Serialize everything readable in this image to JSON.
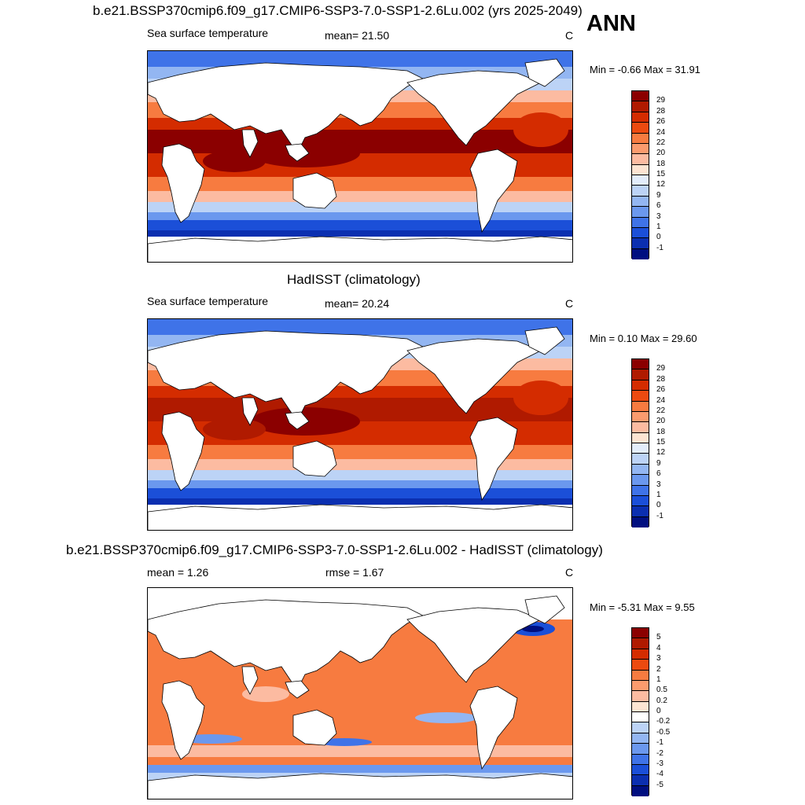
{
  "season": "ANN",
  "panels": [
    {
      "title": "b.e21.BSSP370cmip6.f09_g17.CMIP6-SSP3-7.0-SSP1-2.6Lu.002 (yrs 2025-2049)",
      "left_label": "Sea surface temperature",
      "center_label": "mean=  21.50",
      "units": "C",
      "minmax": "Min =  -0.66 Max =  31.91",
      "colorbar": {
        "labels": [
          "29",
          "28",
          "26",
          "24",
          "22",
          "20",
          "18",
          "15",
          "12",
          "9",
          "6",
          "3",
          "1",
          "0",
          "-1"
        ],
        "colors": [
          "#8b0000",
          "#b01a00",
          "#d42c00",
          "#ec4a10",
          "#f77b40",
          "#fb9b6e",
          "#fcbba1",
          "#fde4d2",
          "#e3edfb",
          "#bcd3f6",
          "#93b6f2",
          "#6b98ee",
          "#3f73e8",
          "#1b4fd8",
          "#0b2fb0",
          "#000f80"
        ]
      },
      "map_variant": "abs"
    },
    {
      "title": "HadISST (climatology)",
      "left_label": "Sea surface temperature",
      "center_label": "mean=  20.24",
      "units": "C",
      "minmax": "Min =   0.10 Max =  29.60",
      "colorbar": {
        "labels": [
          "29",
          "28",
          "26",
          "24",
          "22",
          "20",
          "18",
          "15",
          "12",
          "9",
          "6",
          "3",
          "1",
          "0",
          "-1"
        ],
        "colors": [
          "#8b0000",
          "#b01a00",
          "#d42c00",
          "#ec4a10",
          "#f77b40",
          "#fb9b6e",
          "#fcbba1",
          "#fde4d2",
          "#e3edfb",
          "#bcd3f6",
          "#93b6f2",
          "#6b98ee",
          "#3f73e8",
          "#1b4fd8",
          "#0b2fb0",
          "#000f80"
        ]
      },
      "map_variant": "obs"
    },
    {
      "title": "b.e21.BSSP370cmip6.f09_g17.CMIP6-SSP3-7.0-SSP1-2.6Lu.002 - HadISST (climatology)",
      "left_label": "mean =   1.26",
      "center_label": "rmse =   1.67",
      "units": "C",
      "minmax": "Min =  -5.31 Max =   9.55",
      "colorbar": {
        "labels": [
          "5",
          "4",
          "3",
          "2",
          "1",
          "0.5",
          "0.2",
          "0",
          "-0.2",
          "-0.5",
          "-1",
          "-2",
          "-3",
          "-4",
          "-5"
        ],
        "colors": [
          "#8b0000",
          "#b01a00",
          "#d42c00",
          "#ec4a10",
          "#f77b40",
          "#fb9b6e",
          "#fcbba1",
          "#fde4d2",
          "#ffffff",
          "#bcd3f6",
          "#93b6f2",
          "#6b98ee",
          "#3f73e8",
          "#1b4fd8",
          "#0b2fb0",
          "#000f80"
        ]
      },
      "map_variant": "diff"
    }
  ]
}
